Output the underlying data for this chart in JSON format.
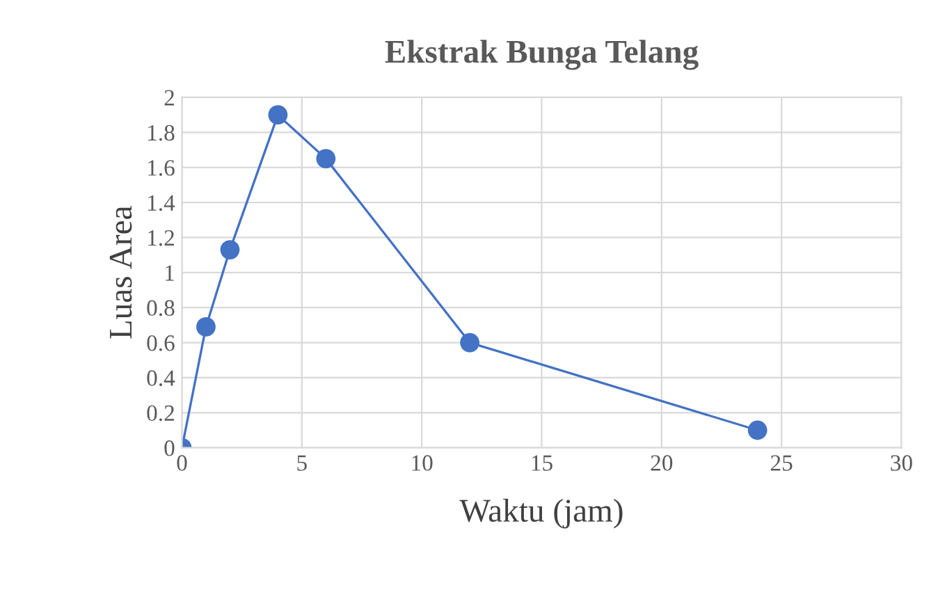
{
  "chart_data": {
    "type": "line",
    "title": "Ekstrak Bunga Telang",
    "xlabel": "Waktu (jam)",
    "ylabel": "Luas Area",
    "x": [
      0,
      1,
      2,
      4,
      6,
      12,
      24
    ],
    "series": [
      {
        "color": "#4472c4",
        "values": [
          0,
          0.69,
          1.13,
          1.9,
          1.65,
          0.6,
          0.1
        ]
      }
    ],
    "xlim": [
      0,
      30
    ],
    "xticks": [
      0,
      5,
      10,
      15,
      20,
      25,
      30
    ],
    "ylim": [
      0,
      2
    ],
    "yticks": [
      0,
      0.2,
      0.4,
      0.6,
      0.8,
      1,
      1.2,
      1.4,
      1.6,
      1.8,
      2
    ],
    "grid": true,
    "marker": "circle",
    "line_style": "solid",
    "legend": false
  }
}
